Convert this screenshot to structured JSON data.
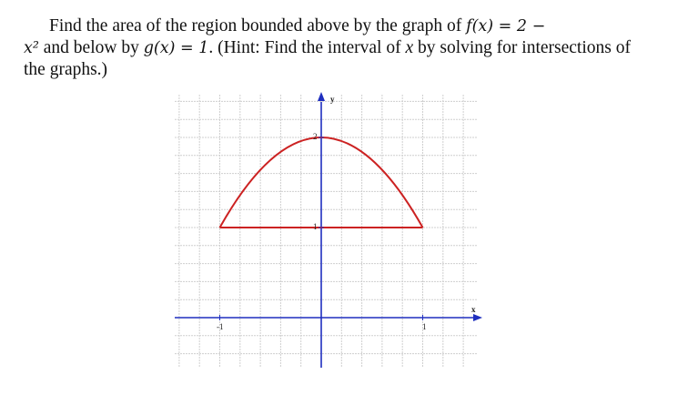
{
  "problem": {
    "lines": [
      [
        "Find the area of the region bounded above by the graph of ",
        "f(x) = 2 −"
      ],
      [
        "x²",
        " and below by ",
        "g(x) = 1",
        ". (Hint: Find the interval of ",
        "x",
        " by solving for intersections of"
      ],
      [
        "the graphs.)"
      ]
    ]
  },
  "figure": {
    "x_axis_label": "x",
    "y_axis_label": "y",
    "x_tick_labels": [
      "-1",
      "1"
    ],
    "y_tick_labels": [
      "2",
      "1"
    ]
  }
}
